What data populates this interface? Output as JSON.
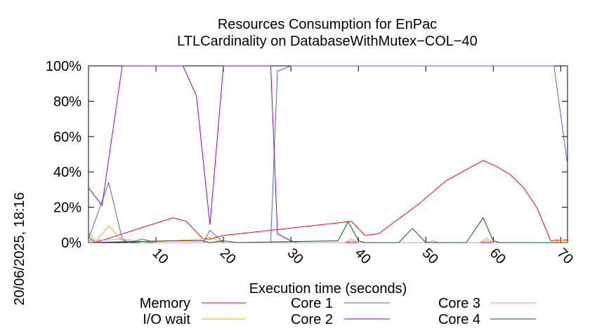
{
  "timestamp": "20/06/2025, 18:16",
  "chart_data": {
    "type": "line",
    "title": "Resources Consumption for EnPac",
    "subtitle": "LTLCardinality on DatabaseWithMutex−COL−40",
    "xlabel": "Execution time (seconds)",
    "ylabel": "",
    "xlim": [
      0,
      71
    ],
    "ylim": [
      0,
      100
    ],
    "x_ticks": [
      10,
      20,
      30,
      40,
      50,
      60,
      70
    ],
    "y_ticks": [
      0,
      20,
      40,
      60,
      80,
      100
    ],
    "y_tick_labels": [
      "0%",
      "20%",
      "40%",
      "60%",
      "80%",
      "100%"
    ],
    "grid": false,
    "legend_position": "bottom",
    "series": [
      {
        "name": "Memory",
        "color": "#ff0000",
        "points": [
          [
            0,
            3
          ],
          [
            1,
            0
          ],
          [
            12.5,
            14
          ],
          [
            14.5,
            12
          ],
          [
            17,
            2
          ],
          [
            18,
            2
          ],
          [
            20,
            4
          ],
          [
            39,
            12
          ],
          [
            41,
            4
          ],
          [
            43,
            5
          ],
          [
            49,
            22
          ],
          [
            53,
            35
          ],
          [
            58.5,
            46.5
          ],
          [
            60.5,
            43
          ],
          [
            62.5,
            38.5
          ],
          [
            64.5,
            31
          ],
          [
            66.5,
            19.5
          ],
          [
            68.5,
            1
          ],
          [
            70,
            1.5
          ],
          [
            71,
            1.5
          ]
        ]
      },
      {
        "name": "I/O wait",
        "color": "#ffa500",
        "points": [
          [
            0,
            6
          ],
          [
            1,
            0
          ],
          [
            3,
            9.5
          ],
          [
            5,
            1
          ],
          [
            8,
            0
          ],
          [
            17,
            2
          ],
          [
            18,
            3
          ],
          [
            20,
            0
          ],
          [
            38,
            0
          ],
          [
            39,
            2
          ],
          [
            40,
            0
          ],
          [
            58,
            0
          ],
          [
            59,
            2.5
          ],
          [
            60,
            0
          ],
          [
            69,
            0
          ],
          [
            70,
            1.5
          ],
          [
            71,
            1
          ]
        ]
      },
      {
        "name": "Core 1",
        "color": "#4169e1",
        "points": [
          [
            0,
            2
          ],
          [
            3,
            34
          ],
          [
            5,
            2
          ],
          [
            6,
            0
          ],
          [
            8,
            2
          ],
          [
            10,
            0
          ],
          [
            17,
            0
          ],
          [
            18,
            7
          ],
          [
            20,
            0
          ],
          [
            26,
            0
          ],
          [
            27,
            0
          ],
          [
            28,
            97
          ],
          [
            30,
            100
          ],
          [
            69,
            100
          ],
          [
            71,
            44
          ]
        ]
      },
      {
        "name": "Core 2",
        "color": "#9400d3",
        "points": [
          [
            0,
            31
          ],
          [
            2,
            21
          ],
          [
            5,
            100
          ],
          [
            14,
            100
          ],
          [
            16,
            83
          ],
          [
            18,
            10
          ],
          [
            20,
            100
          ],
          [
            27,
            100
          ],
          [
            28,
            5
          ],
          [
            30,
            1
          ],
          [
            31,
            0
          ],
          [
            71,
            0
          ]
        ]
      },
      {
        "name": "Core 3",
        "color": "#ee82ee",
        "points": [
          [
            0,
            1
          ],
          [
            5,
            2
          ],
          [
            7,
            1
          ],
          [
            10,
            0
          ],
          [
            38,
            0
          ],
          [
            39,
            1
          ],
          [
            40,
            0
          ],
          [
            50,
            0
          ],
          [
            51,
            1
          ],
          [
            52,
            0
          ],
          [
            58,
            0
          ],
          [
            59,
            1
          ],
          [
            60,
            0
          ],
          [
            71,
            0
          ]
        ]
      },
      {
        "name": "Core 4",
        "color": "#006400",
        "points": [
          [
            0,
            0
          ],
          [
            12,
            1
          ],
          [
            17,
            1
          ],
          [
            18,
            0
          ],
          [
            20,
            1
          ],
          [
            22,
            0
          ],
          [
            37,
            1
          ],
          [
            38.5,
            12
          ],
          [
            40,
            1
          ],
          [
            41,
            0
          ],
          [
            46,
            0
          ],
          [
            48,
            8
          ],
          [
            50,
            0
          ],
          [
            56,
            0
          ],
          [
            58.5,
            14
          ],
          [
            60,
            1
          ],
          [
            61,
            0
          ],
          [
            71,
            0
          ]
        ]
      }
    ]
  }
}
